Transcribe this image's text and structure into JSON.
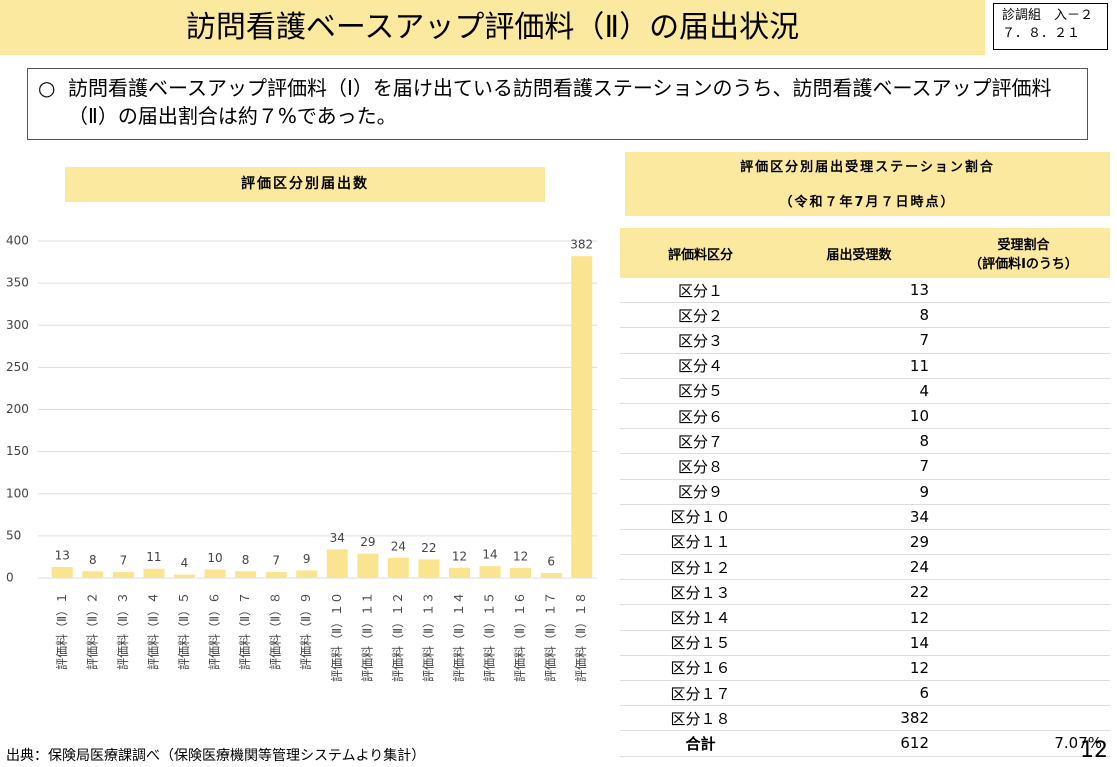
{
  "header": {
    "title": "訪問看護ベースアップ評価料（Ⅱ）の届出状況",
    "code": [
      "診調組　入－２",
      "７．８．２１"
    ]
  },
  "summary": {
    "bullet": "○",
    "text": "訪問看護ベースアップ評価料（Ⅰ）を届け出ている訪問看護ステーションのうち、訪問看護ベースアップ評価料（Ⅱ）の届出割合は約７%であった。"
  },
  "chart_data": {
    "type": "bar",
    "title": "評価区分別届出数",
    "categories": [
      "評価料（Ⅱ）１",
      "評価料（Ⅱ）２",
      "評価料（Ⅱ）３",
      "評価料（Ⅱ）４",
      "評価料（Ⅱ）５",
      "評価料（Ⅱ）６",
      "評価料（Ⅱ）７",
      "評価料（Ⅱ）８",
      "評価料（Ⅱ）９",
      "評価料（Ⅱ）１０",
      "評価料（Ⅱ）１１",
      "評価料（Ⅱ）１２",
      "評価料（Ⅱ）１３",
      "評価料（Ⅱ）１４",
      "評価料（Ⅱ）１５",
      "評価料（Ⅱ）１６",
      "評価料（Ⅱ）１７",
      "評価料（Ⅱ）１８"
    ],
    "values": [
      13,
      8,
      7,
      11,
      4,
      10,
      8,
      7,
      9,
      34,
      29,
      24,
      22,
      12,
      14,
      12,
      6,
      382
    ],
    "color": "#fbe48f",
    "ylim": [
      0,
      400
    ],
    "yticks": [
      0,
      50,
      100,
      150,
      200,
      250,
      300,
      350,
      400
    ],
    "grid": true
  },
  "table": {
    "title": "評価区分別届出受理ステーション割合",
    "subtitle": "（令和７年7月７日時点）",
    "columns": [
      "評価料区分",
      "届出受理数",
      [
        "受理割合",
        "（評価料Ⅰのうち）"
      ]
    ],
    "rows": [
      [
        "区分１",
        13
      ],
      [
        "区分２",
        8
      ],
      [
        "区分３",
        7
      ],
      [
        "区分４",
        11
      ],
      [
        "区分５",
        4
      ],
      [
        "区分６",
        10
      ],
      [
        "区分７",
        8
      ],
      [
        "区分８",
        7
      ],
      [
        "区分９",
        9
      ],
      [
        "区分１０",
        34
      ],
      [
        "区分１１",
        29
      ],
      [
        "区分１２",
        24
      ],
      [
        "区分１３",
        22
      ],
      [
        "区分１４",
        12
      ],
      [
        "区分１５",
        14
      ],
      [
        "区分１６",
        12
      ],
      [
        "区分１７",
        6
      ],
      [
        "区分１８",
        382
      ]
    ],
    "total": [
      "合計",
      612,
      "7.07%"
    ]
  },
  "footer": {
    "source": "出典：保険局医療課調べ（保険医療機関等管理システムより集計）",
    "page": "12"
  }
}
